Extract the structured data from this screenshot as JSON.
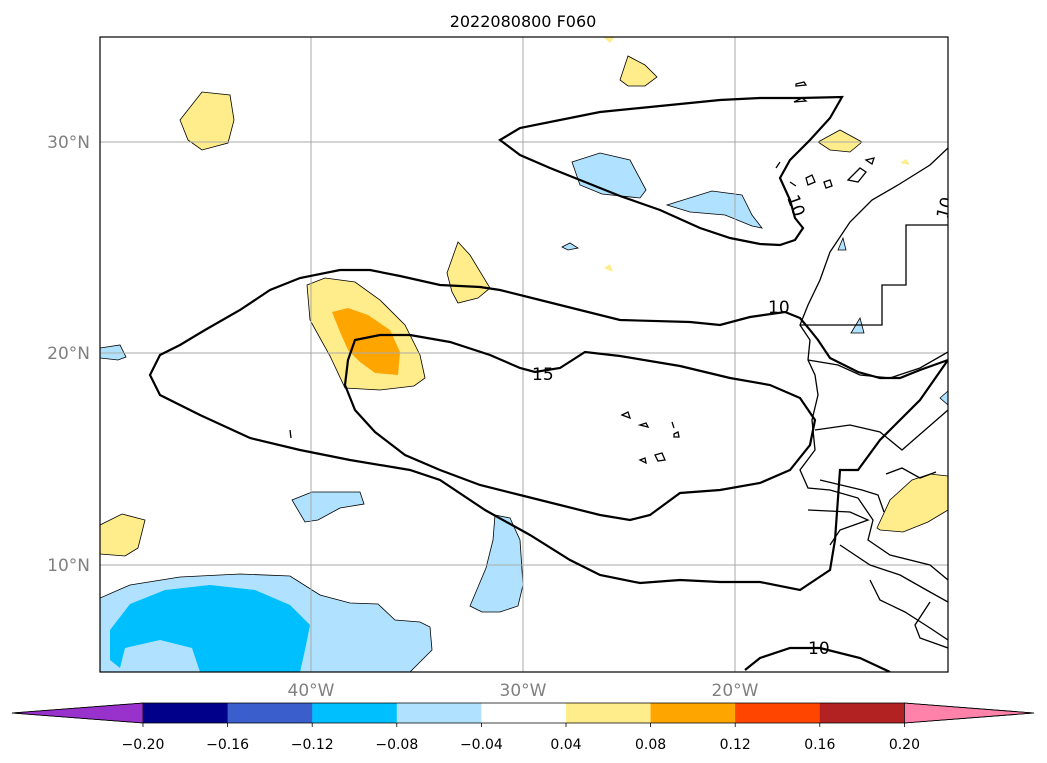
{
  "chart_data": {
    "type": "map",
    "title": "2022080800 F060",
    "lat_ticks": [
      "30°N",
      "20°N",
      "10°N"
    ],
    "lon_ticks": [
      "40°W",
      "30°W",
      "20°W"
    ],
    "contour_labels": [
      "10",
      "15",
      "10",
      "10",
      "10"
    ],
    "colorbar": {
      "ticks": [
        "−0.20",
        "−0.16",
        "−0.12",
        "−0.08",
        "−0.04",
        "0.04",
        "0.08",
        "0.12",
        "0.16",
        "0.20"
      ],
      "colors": [
        "#9932cc",
        "#00008b",
        "#3a5fcd",
        "#00bfff",
        "#b0e2ff",
        "#ffffff",
        "#ffec8b",
        "#ffa500",
        "#ff4500",
        "#b22222",
        "#ff82ab"
      ]
    },
    "grid": true
  }
}
